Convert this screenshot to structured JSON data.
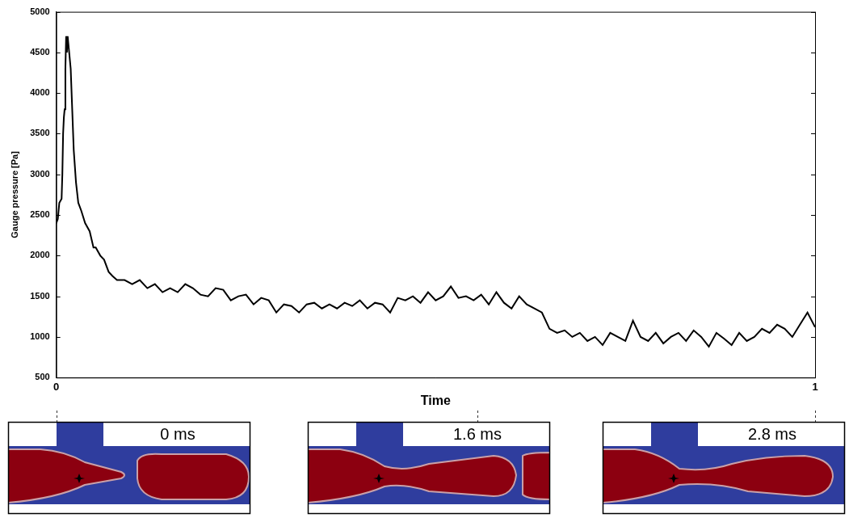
{
  "chart_data": {
    "type": "line",
    "x_label": "Time",
    "y_label": "Gauge pressure [Pa]",
    "x": [
      0,
      0.002,
      0.004,
      0.007,
      0.008,
      0.009,
      0.01,
      0.011,
      0.012,
      0.013,
      0.014,
      0.015,
      0.016,
      0.019,
      0.021,
      0.023,
      0.026,
      0.029,
      0.033,
      0.038,
      0.044,
      0.049,
      0.052,
      0.058,
      0.063,
      0.069,
      0.074,
      0.08,
      0.09,
      0.1,
      0.11,
      0.12,
      0.13,
      0.14,
      0.15,
      0.16,
      0.17,
      0.18,
      0.19,
      0.2,
      0.21,
      0.22,
      0.23,
      0.24,
      0.25,
      0.26,
      0.27,
      0.28,
      0.29,
      0.3,
      0.31,
      0.32,
      0.33,
      0.34,
      0.35,
      0.36,
      0.37,
      0.38,
      0.39,
      0.4,
      0.41,
      0.42,
      0.43,
      0.44,
      0.45,
      0.46,
      0.47,
      0.48,
      0.49,
      0.5,
      0.51,
      0.52,
      0.53,
      0.54,
      0.55,
      0.56,
      0.57,
      0.58,
      0.59,
      0.6,
      0.61,
      0.62,
      0.63,
      0.64,
      0.65,
      0.66,
      0.67,
      0.68,
      0.69,
      0.7,
      0.71,
      0.72,
      0.73,
      0.74,
      0.75,
      0.76,
      0.77,
      0.78,
      0.79,
      0.8,
      0.81,
      0.82,
      0.83,
      0.84,
      0.85,
      0.86,
      0.87,
      0.88,
      0.89,
      0.9,
      0.91,
      0.92,
      0.93,
      0.94,
      0.95,
      0.96,
      0.97,
      0.98,
      0.99,
      1
    ],
    "values": [
      2400,
      2450,
      2650,
      2700,
      3000,
      3500,
      3700,
      3800,
      4300,
      4700,
      4500,
      4700,
      4600,
      4300,
      3800,
      3300,
      2900,
      2650,
      2550,
      2400,
      2300,
      2100,
      2100,
      2000,
      1950,
      1800,
      1750,
      1700,
      1700,
      1650,
      1700,
      1600,
      1650,
      1550,
      1600,
      1550,
      1650,
      1600,
      1520,
      1500,
      1600,
      1580,
      1450,
      1500,
      1520,
      1400,
      1480,
      1450,
      1300,
      1400,
      1380,
      1300,
      1400,
      1420,
      1350,
      1400,
      1350,
      1420,
      1380,
      1450,
      1350,
      1420,
      1400,
      1300,
      1480,
      1450,
      1500,
      1420,
      1550,
      1450,
      1500,
      1620,
      1480,
      1500,
      1450,
      1520,
      1400,
      1550,
      1420,
      1350,
      1500,
      1400,
      1350,
      1300,
      1100,
      1050,
      1080,
      1000,
      1050,
      950,
      1000,
      900,
      1050,
      1000,
      950,
      1200,
      1000,
      950,
      1050,
      920,
      1000,
      1050,
      950,
      1080,
      1000,
      880,
      1050,
      980,
      900,
      1050,
      950,
      1000,
      1100,
      1050,
      1150,
      1100,
      1000,
      1150,
      1300,
      1120
    ],
    "color": "#000000",
    "xlim": [
      0,
      1
    ],
    "xticks": [
      0,
      1
    ],
    "ylim": [
      500,
      5000
    ],
    "yticks": [
      500,
      1000,
      1500,
      2000,
      2500,
      3000,
      3500,
      4000,
      4500,
      5000
    ],
    "grid": false,
    "snapshots": [
      {
        "x": 0,
        "label": "0 ms"
      },
      {
        "x": 0.555,
        "label": "1.6 ms"
      },
      {
        "x": 1,
        "label": "2.8 ms"
      }
    ]
  }
}
